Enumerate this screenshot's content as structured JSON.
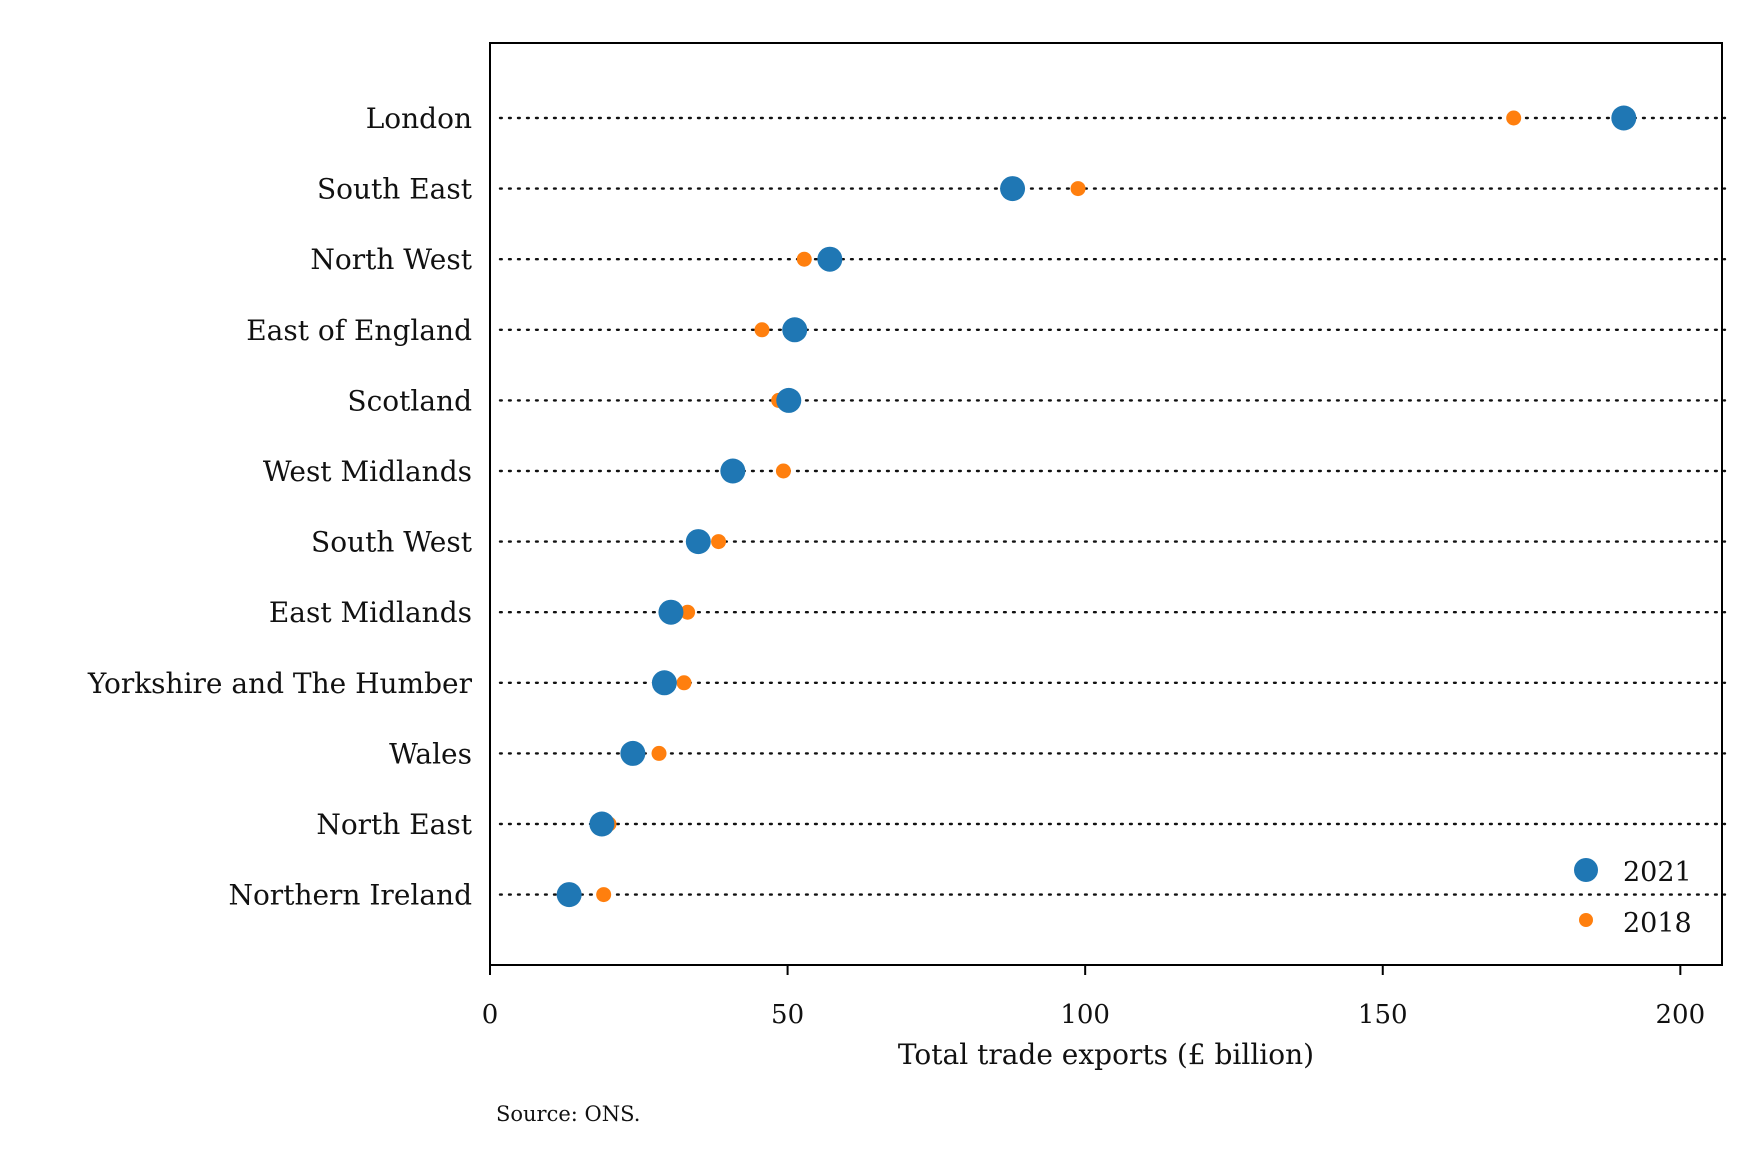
{
  "chart_data": {
    "type": "scatter",
    "subtype": "dot-plot",
    "title": "",
    "xlabel": "Total trade exports (£ billion)",
    "ylabel": "",
    "xlim": [
      0,
      207
    ],
    "x_ticks": [
      0,
      50,
      100,
      150,
      200
    ],
    "x_tick_labels": [
      "0",
      "50",
      "100",
      "150",
      "200"
    ],
    "grid": "dotted horizontal row lines",
    "legend_position": "bottom-right",
    "categories": [
      "London",
      "South East",
      "North West",
      "East of England",
      "Scotland",
      "West Midlands",
      "South West",
      "East Midlands",
      "Yorkshire and The Humber",
      "Wales",
      "North East",
      "Northern Ireland"
    ],
    "series": [
      {
        "name": "2021",
        "color": "#1f77b4",
        "marker": "large-circle",
        "values": [
          190.5,
          87.8,
          57.1,
          51.2,
          50.2,
          40.8,
          35.0,
          30.4,
          29.3,
          24.0,
          18.8,
          13.3
        ]
      },
      {
        "name": "2018",
        "color": "#ff7f0e",
        "marker": "small-circle",
        "values": [
          172.0,
          98.8,
          52.8,
          45.7,
          48.5,
          49.3,
          38.4,
          33.2,
          32.6,
          28.4,
          20.0,
          19.1
        ]
      }
    ],
    "source_note": "Source: ONS."
  }
}
